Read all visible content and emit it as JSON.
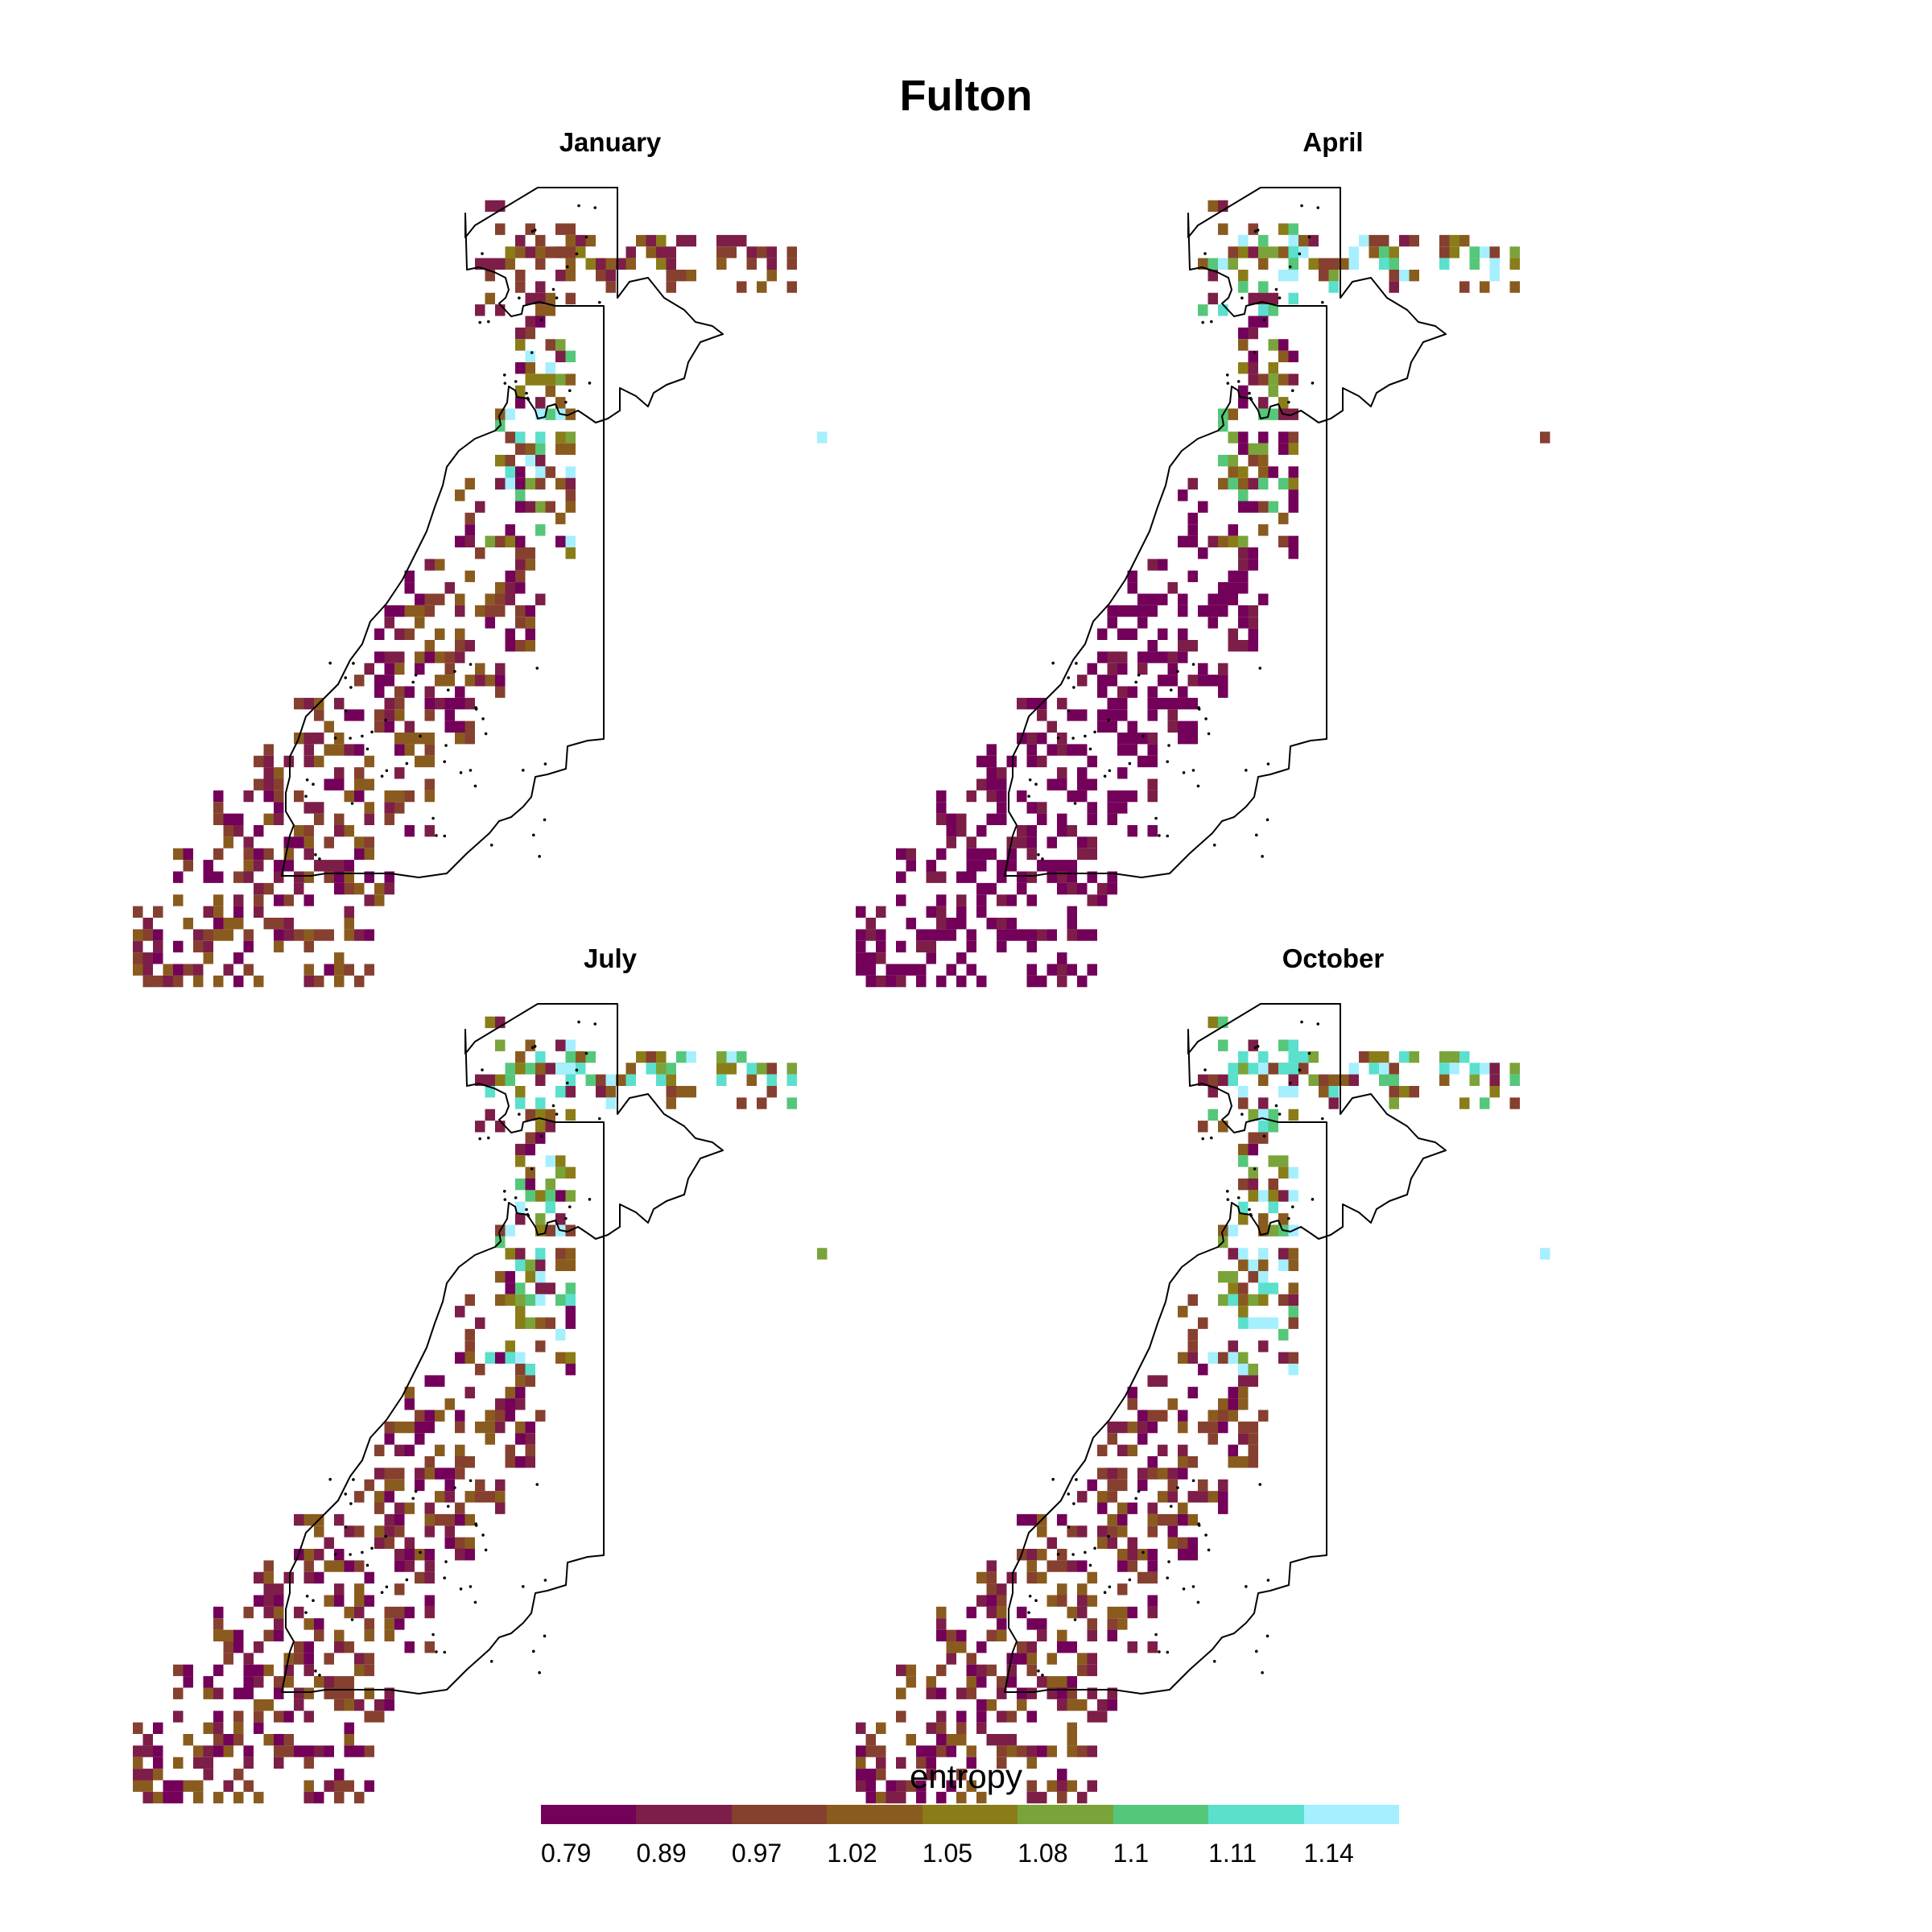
{
  "title": "Fulton",
  "panels": [
    {
      "id": "january",
      "label": "January",
      "variant": 0
    },
    {
      "id": "april",
      "label": "April",
      "variant": 1
    },
    {
      "id": "july",
      "label": "July",
      "variant": 2
    },
    {
      "id": "october",
      "label": "October",
      "variant": 3
    }
  ],
  "legend": {
    "title": "entropy",
    "ticks": [
      "0.79",
      "0.89",
      "0.97",
      "1.02",
      "1.05",
      "1.08",
      "1.1",
      "1.11",
      "1.14"
    ],
    "colors": [
      "#730059",
      "#7c1e48",
      "#86402f",
      "#8a5b1f",
      "#8a7c18",
      "#7aa33a",
      "#55c77a",
      "#5ae0cc",
      "#a6efff"
    ]
  },
  "map_style": {
    "outline_color": "#000000",
    "background": "#ffffff"
  }
}
